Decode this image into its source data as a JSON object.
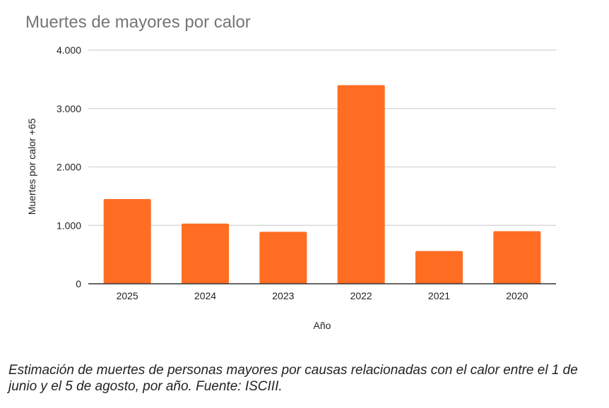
{
  "chart_data": {
    "type": "bar",
    "title": "Muertes de mayores por calor",
    "xlabel": "Año",
    "ylabel": "Muertes por calor +65",
    "categories": [
      "2025",
      "2024",
      "2023",
      "2022",
      "2021",
      "2020"
    ],
    "values": [
      1450,
      1030,
      890,
      3400,
      560,
      900
    ],
    "ylim": [
      0,
      4000
    ],
    "yticks": [
      0,
      1000,
      2000,
      3000,
      4000
    ],
    "ytick_labels": [
      "0",
      "1.000",
      "2.000",
      "3.000",
      "4.000"
    ],
    "grid": true,
    "bar_color": "#ff6d22"
  },
  "caption": "Estimación de muertes de personas mayores por causas relacionadas con el calor entre el 1 de junio y el 5 de agosto, por año. Fuente: ISCIII."
}
